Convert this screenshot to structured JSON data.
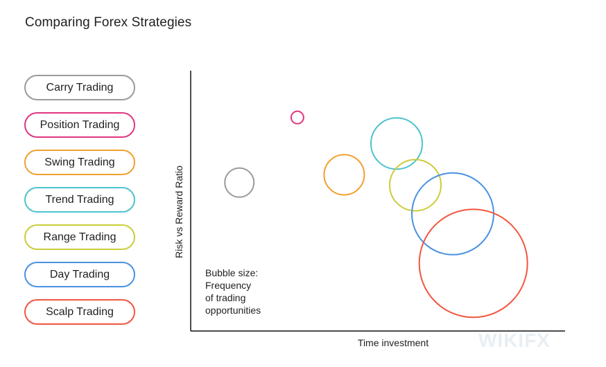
{
  "title": "Comparing Forex Strategies",
  "legend": [
    {
      "label": "Carry Trading",
      "color": "#9a9a9a"
    },
    {
      "label": "Position Trading",
      "color": "#e0357f"
    },
    {
      "label": "Swing Trading",
      "color": "#f0a030"
    },
    {
      "label": "Trend Trading",
      "color": "#4cc3cc"
    },
    {
      "label": "Range Trading",
      "color": "#cccc3a"
    },
    {
      "label": "Day Trading",
      "color": "#4a90e2"
    },
    {
      "label": "Scalp Trading",
      "color": "#f2553f"
    }
  ],
  "note_lines": [
    "Bubble size:",
    "Frequency",
    "of trading",
    "opportunities"
  ],
  "watermark": "WIKIFX",
  "chart_data": {
    "type": "scatter",
    "title": "Comparing Forex Strategies",
    "xlabel": "Time investment",
    "ylabel": "Risk vs Reward Ratio",
    "xlim": [
      0,
      100
    ],
    "ylim": [
      0,
      100
    ],
    "grid": false,
    "legend_placement": "left",
    "size_meaning": "Frequency of trading opportunities",
    "series": [
      {
        "name": "Carry Trading",
        "x": 13,
        "y": 57,
        "size": 21,
        "color": "#9a9a9a"
      },
      {
        "name": "Position Trading",
        "x": 28.5,
        "y": 82,
        "size": 9,
        "color": "#e0357f"
      },
      {
        "name": "Swing Trading",
        "x": 41,
        "y": 60,
        "size": 29,
        "color": "#f0a030"
      },
      {
        "name": "Trend Trading",
        "x": 55,
        "y": 72,
        "size": 37,
        "color": "#4cc3cc"
      },
      {
        "name": "Range Trading",
        "x": 60,
        "y": 56,
        "size": 37,
        "color": "#cccc3a"
      },
      {
        "name": "Day Trading",
        "x": 70,
        "y": 45,
        "size": 59,
        "color": "#4a90e2"
      },
      {
        "name": "Scalp Trading",
        "x": 75.5,
        "y": 26,
        "size": 78,
        "color": "#f2553f"
      }
    ]
  }
}
